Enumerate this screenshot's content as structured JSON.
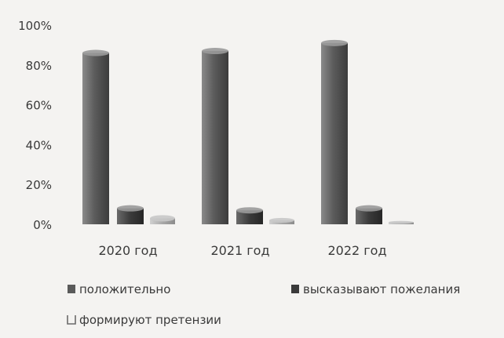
{
  "chart_data": {
    "type": "bar",
    "title": "",
    "xlabel": "",
    "ylabel": "",
    "categories": [
      "2020 год",
      "2021 год",
      "2022 год"
    ],
    "ylim": [
      0,
      100
    ],
    "yticks": [
      "0%",
      "20%",
      "40%",
      "60%",
      "80%",
      "100%"
    ],
    "grid": false,
    "legend_position": "bottom",
    "series": [
      {
        "name": "положительно",
        "values": [
          86,
          87,
          91
        ],
        "color": "#5a5a5a"
      },
      {
        "name": "высказывают пожелания",
        "values": [
          8,
          7,
          8
        ],
        "color": "#3a3a3a"
      },
      {
        "name": "формируют претензии",
        "values": [
          3,
          2,
          1
        ],
        "color": "#b0b0b0"
      }
    ]
  }
}
